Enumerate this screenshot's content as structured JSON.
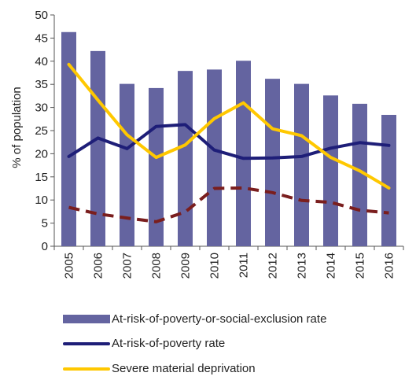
{
  "chart_data": {
    "type": "bar",
    "categories": [
      "2005",
      "2006",
      "2007",
      "2008",
      "2009",
      "2010",
      "2011",
      "2012",
      "2013",
      "2014",
      "2015",
      "2016"
    ],
    "ylabel": "% of population",
    "xlabel": "",
    "title": "",
    "ylim": [
      0,
      50
    ],
    "yticks": [
      0,
      5,
      10,
      15,
      20,
      25,
      30,
      35,
      40,
      45,
      50
    ],
    "series": [
      {
        "name": "At-risk-of-poverty-or-social-exclusion rate",
        "kind": "bar",
        "color": "#6464a0",
        "values": [
          46.3,
          42.2,
          35.1,
          34.2,
          37.9,
          38.2,
          40.1,
          36.2,
          35.1,
          32.6,
          30.8,
          28.4
        ]
      },
      {
        "name": "At-risk-of-poverty rate",
        "kind": "line",
        "color": "#1e1e78",
        "values": [
          19.4,
          23.4,
          21.1,
          25.9,
          26.3,
          20.8,
          19.0,
          19.1,
          19.4,
          21.2,
          22.4,
          21.8
        ]
      },
      {
        "name": "Severe material deprivation",
        "kind": "line",
        "color": "#ffc800",
        "values": [
          39.3,
          31.6,
          24.1,
          19.2,
          21.9,
          27.6,
          31.0,
          25.4,
          23.9,
          19.2,
          16.3,
          12.6
        ]
      },
      {
        "name": "",
        "kind": "dashed-line",
        "color": "#7a1e1e",
        "values": [
          8.4,
          7.0,
          6.1,
          5.3,
          7.4,
          12.5,
          12.6,
          11.6,
          9.9,
          9.5,
          7.8,
          7.2
        ]
      }
    ]
  },
  "legend": {
    "items": [
      {
        "label": "At-risk-of-poverty-or-social-exclusion rate"
      },
      {
        "label": "At-risk-of-poverty rate"
      },
      {
        "label": "Severe material deprivation"
      }
    ]
  }
}
